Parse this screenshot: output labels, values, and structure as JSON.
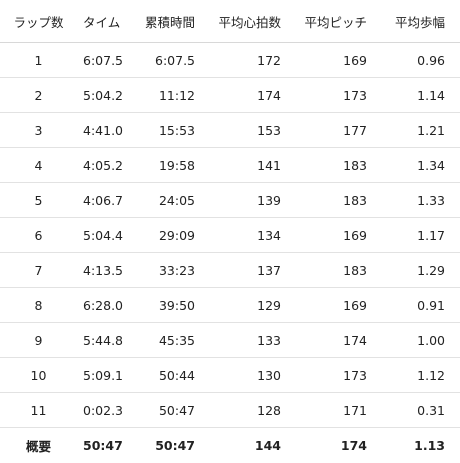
{
  "table": {
    "headers": [
      "ラップ数",
      "タイム",
      "累積時間",
      "平均心拍数",
      "平均ピッチ",
      "平均歩幅"
    ],
    "rows": [
      [
        "1",
        "6:07.5",
        "6:07.5",
        "172",
        "169",
        "0.96"
      ],
      [
        "2",
        "5:04.2",
        "11:12",
        "174",
        "173",
        "1.14"
      ],
      [
        "3",
        "4:41.0",
        "15:53",
        "153",
        "177",
        "1.21"
      ],
      [
        "4",
        "4:05.2",
        "19:58",
        "141",
        "183",
        "1.34"
      ],
      [
        "5",
        "4:06.7",
        "24:05",
        "139",
        "183",
        "1.33"
      ],
      [
        "6",
        "5:04.4",
        "29:09",
        "134",
        "169",
        "1.17"
      ],
      [
        "7",
        "4:13.5",
        "33:23",
        "137",
        "183",
        "1.29"
      ],
      [
        "8",
        "6:28.0",
        "39:50",
        "129",
        "169",
        "0.91"
      ],
      [
        "9",
        "5:44.8",
        "45:35",
        "133",
        "174",
        "1.00"
      ],
      [
        "10",
        "5:09.1",
        "50:44",
        "130",
        "173",
        "1.12"
      ],
      [
        "11",
        "0:02.3",
        "50:47",
        "128",
        "171",
        "0.31"
      ]
    ],
    "summary": [
      "概要",
      "50:47",
      "50:47",
      "144",
      "174",
      "1.13"
    ]
  }
}
